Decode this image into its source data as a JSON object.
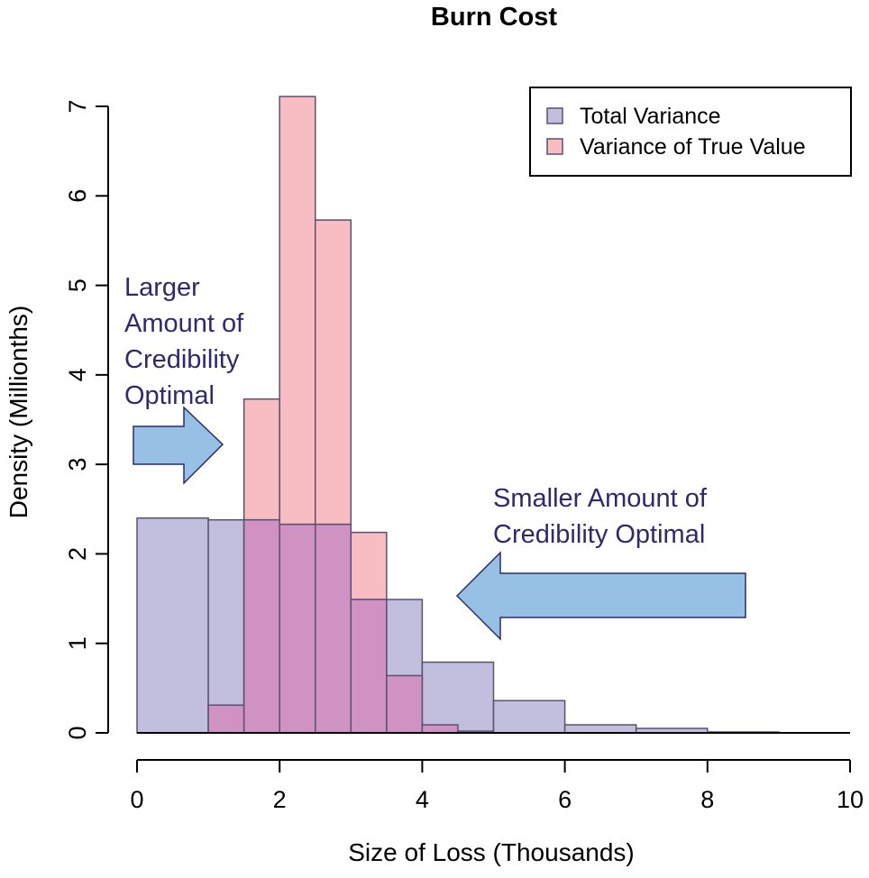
{
  "chart_data": {
    "type": "histogram",
    "title": "Burn Cost",
    "xlabel": "Size of Loss (Thousands)",
    "ylabel": "Density (Millionths)",
    "xlim": [
      0,
      10
    ],
    "ylim": [
      0,
      7
    ],
    "xticks": [
      0,
      2,
      4,
      6,
      8,
      10
    ],
    "yticks": [
      0,
      1,
      2,
      3,
      4,
      5,
      6,
      7
    ],
    "grid": false,
    "legend_position": "top-right",
    "series": [
      {
        "name": "Total Variance",
        "color": "#c2bede",
        "bins": [
          {
            "x0": 0,
            "x1": 1,
            "density": 2.4
          },
          {
            "x0": 1,
            "x1": 1.5,
            "density": 2.38
          },
          {
            "x0": 1.5,
            "x1": 2,
            "density": 2.38
          },
          {
            "x0": 2,
            "x1": 2.5,
            "density": 2.33
          },
          {
            "x0": 2.5,
            "x1": 3,
            "density": 2.33
          },
          {
            "x0": 3,
            "x1": 3.5,
            "density": 1.49
          },
          {
            "x0": 3.5,
            "x1": 4,
            "density": 1.49
          },
          {
            "x0": 4,
            "x1": 5,
            "density": 0.79
          },
          {
            "x0": 5,
            "x1": 6,
            "density": 0.36
          },
          {
            "x0": 6,
            "x1": 7,
            "density": 0.09
          },
          {
            "x0": 7,
            "x1": 8,
            "density": 0.05
          },
          {
            "x0": 8,
            "x1": 9,
            "density": 0.01
          }
        ]
      },
      {
        "name": "Variance of True Value",
        "color": "#f7bdc2",
        "bins": [
          {
            "x0": 1,
            "x1": 1.5,
            "density": 0.31
          },
          {
            "x0": 1.5,
            "x1": 2,
            "density": 3.73
          },
          {
            "x0": 2,
            "x1": 2.5,
            "density": 7.11
          },
          {
            "x0": 2.5,
            "x1": 3,
            "density": 5.73
          },
          {
            "x0": 3,
            "x1": 3.5,
            "density": 2.24
          },
          {
            "x0": 3.5,
            "x1": 4,
            "density": 0.64
          },
          {
            "x0": 4,
            "x1": 4.5,
            "density": 0.09
          },
          {
            "x0": 4.5,
            "x1": 5,
            "density": 0.02
          }
        ]
      }
    ],
    "overlap_color": "#d092c2",
    "edge_color": "#5a5070",
    "annotations": [
      {
        "lines": [
          "Larger",
          "Amount of",
          "Credibility",
          "Optimal"
        ],
        "arrow": "right"
      },
      {
        "lines": [
          "Smaller Amount of",
          "Credibility Optimal"
        ],
        "arrow": "left"
      }
    ],
    "annotation_color": "#2e2a6b",
    "arrow_fill": "#97c0e5",
    "arrow_stroke": "#2e2a6b"
  }
}
